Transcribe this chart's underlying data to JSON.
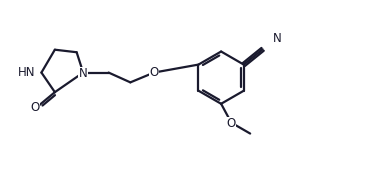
{
  "bg_color": "#ffffff",
  "line_color": "#1a1a2e",
  "line_width": 1.6,
  "font_size": 8.5,
  "figsize": [
    3.66,
    1.72
  ],
  "dpi": 100,
  "xlim": [
    0,
    9.5
  ],
  "ylim": [
    0,
    4.7
  ]
}
